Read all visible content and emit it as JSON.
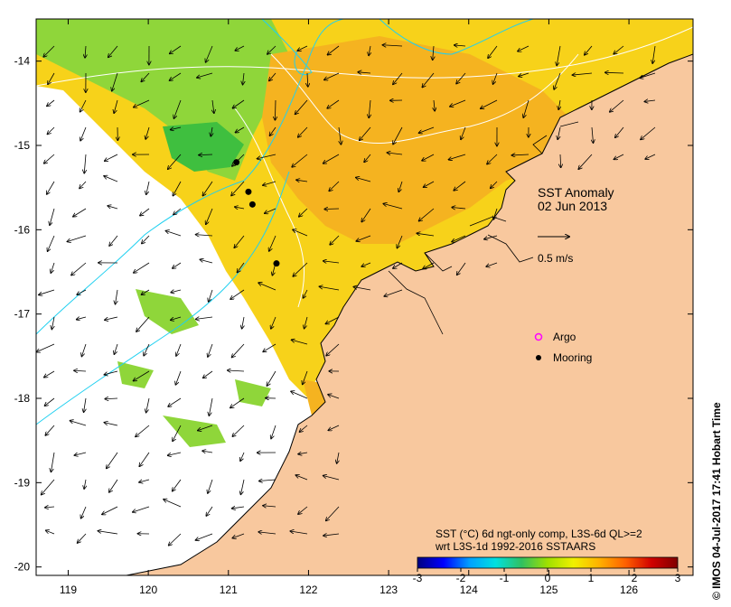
{
  "map": {
    "title": "SST Anomaly",
    "date": "02 Jun 2013",
    "scale_arrow_label": "0.5 m/s",
    "lon_ticks": [
      "119",
      "120",
      "121",
      "122",
      "123",
      "124",
      "125",
      "126"
    ],
    "lat_ticks": [
      "-14",
      "-15",
      "-16",
      "-17",
      "-18",
      "-19",
      "-20"
    ],
    "lon_range": [
      118.6,
      126.8
    ],
    "lat_range": [
      -20.1,
      -13.5
    ]
  },
  "legend": {
    "argo_label": "Argo",
    "mooring_label": "Mooring",
    "argo_color": "#ff00ff",
    "mooring_color": "#000000"
  },
  "moorings": [
    {
      "lon": 121.1,
      "lat": -15.2
    },
    {
      "lon": 121.25,
      "lat": -15.55
    },
    {
      "lon": 121.3,
      "lat": -15.7
    },
    {
      "lon": 121.6,
      "lat": -16.4
    }
  ],
  "colorbar": {
    "line1": "SST (°C) 6d ngt-only comp, L3S-6d QL>=2",
    "line2": "wrt L3S-1d 1992-2016 SSTAARS",
    "ticks": [
      "-3",
      "-2",
      "-1",
      "0",
      "1",
      "2",
      "3"
    ],
    "colors": [
      "#00007f",
      "#0000ff",
      "#00a0ff",
      "#00e0e0",
      "#30c060",
      "#a0e000",
      "#f0f000",
      "#ffb000",
      "#ff6000",
      "#d00000",
      "#7f0000"
    ]
  },
  "credit": "© IMOS 04-Jul-2017 17:41 Hobart Time",
  "colors": {
    "land": "#f8c89e",
    "sst_warm": "#f7d21a",
    "sst_hot": "#f5b320",
    "sst_cool": "#8fd63a",
    "sst_cold": "#3fbf3f",
    "contour": "#ffffff",
    "current_line": "#20d0f0"
  }
}
